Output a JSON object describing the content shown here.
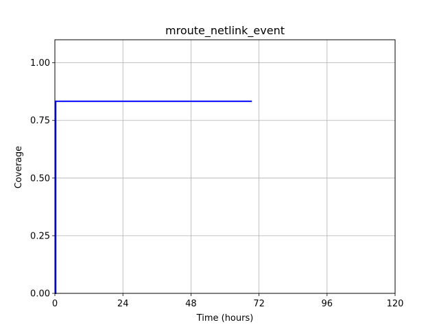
{
  "chart_data": {
    "type": "line",
    "title": "mroute_netlink_event",
    "xlabel": "Time (hours)",
    "ylabel": "Coverage",
    "xlim": [
      0,
      120
    ],
    "ylim": [
      0,
      1.1
    ],
    "x_ticks": [
      0,
      24,
      48,
      72,
      96,
      120
    ],
    "x_tick_labels": [
      "0",
      "24",
      "48",
      "72",
      "96",
      "120"
    ],
    "y_ticks": [
      0,
      0.25,
      0.5,
      0.75,
      1.0
    ],
    "y_tick_labels": [
      "0.00",
      "0.25",
      "0.50",
      "0.75",
      "1.00"
    ],
    "grid": true,
    "line_style": "step",
    "series": [
      {
        "color": "#0000ff",
        "x": [
          0,
          0.3,
          0.3,
          69.5
        ],
        "y": [
          0,
          0,
          0.833,
          0.833
        ]
      }
    ]
  }
}
